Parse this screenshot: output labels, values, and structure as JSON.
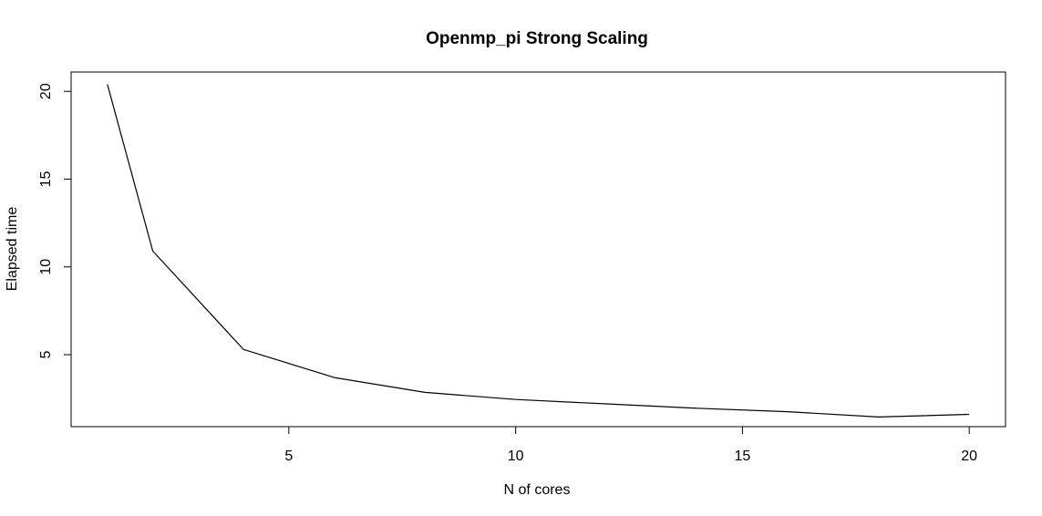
{
  "chart_data": {
    "type": "line",
    "title": "Openmp_pi Strong Scaling",
    "xlabel": "N of cores",
    "ylabel": "Elapsed time",
    "xlim": [
      0.2,
      20.8
    ],
    "ylim": [
      0.9,
      21.1
    ],
    "x_ticks": [
      5,
      10,
      15,
      20
    ],
    "x_tick_labels": [
      "5",
      "10",
      "15",
      "20"
    ],
    "y_ticks": [
      5,
      10,
      15,
      20
    ],
    "y_tick_labels": [
      "5",
      "10",
      "15",
      "20"
    ],
    "grid": false,
    "line_color": "#000000",
    "series": [
      {
        "x": [
          1,
          2,
          4,
          6,
          8,
          10,
          12,
          14,
          16,
          18,
          20
        ],
        "y": [
          20.4,
          10.9,
          5.3,
          3.7,
          2.85,
          2.45,
          2.2,
          1.95,
          1.75,
          1.45,
          1.6
        ]
      }
    ]
  }
}
